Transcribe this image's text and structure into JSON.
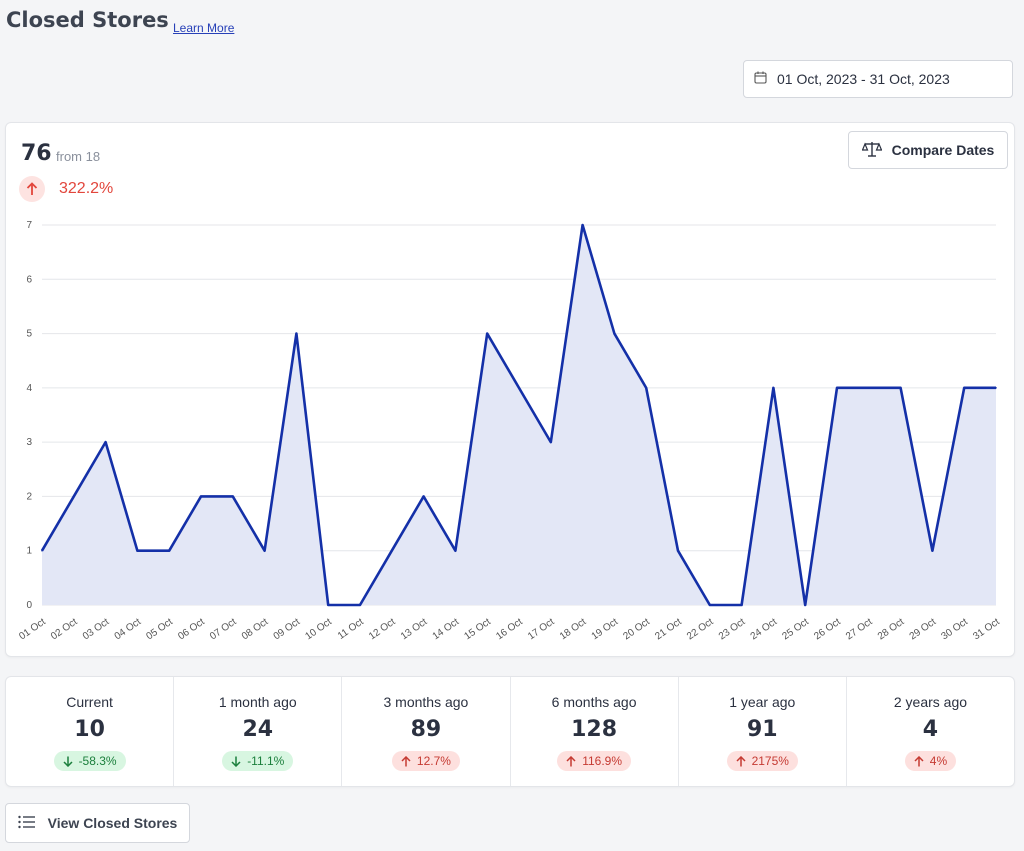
{
  "header": {
    "title": "Closed Stores",
    "learn_more": "Learn More"
  },
  "date_range": {
    "label": "01 Oct, 2023 - 31 Oct, 2023",
    "icon": "calendar-icon"
  },
  "summary": {
    "total": "76",
    "from_text": "from 18",
    "change": "322.2%",
    "change_direction": "up",
    "compare_button": "Compare Dates",
    "compare_icon": "scale-icon"
  },
  "chart_data": {
    "type": "area",
    "title": "",
    "xlabel": "",
    "ylabel": "",
    "categories": [
      "01 Oct",
      "02 Oct",
      "03 Oct",
      "04 Oct",
      "05 Oct",
      "06 Oct",
      "07 Oct",
      "08 Oct",
      "09 Oct",
      "10 Oct",
      "11 Oct",
      "12 Oct",
      "13 Oct",
      "14 Oct",
      "15 Oct",
      "16 Oct",
      "17 Oct",
      "18 Oct",
      "19 Oct",
      "20 Oct",
      "21 Oct",
      "22 Oct",
      "23 Oct",
      "24 Oct",
      "25 Oct",
      "26 Oct",
      "27 Oct",
      "28 Oct",
      "29 Oct",
      "30 Oct",
      "31 Oct"
    ],
    "values": [
      1,
      2,
      3,
      1,
      1,
      2,
      2,
      1,
      5,
      0,
      0,
      1,
      2,
      1,
      5,
      4,
      3,
      7,
      5,
      4,
      1,
      0,
      0,
      4,
      0,
      4,
      4,
      4,
      1,
      4,
      4
    ],
    "ylim": [
      0,
      7
    ],
    "yticks": [
      0,
      1,
      2,
      3,
      4,
      5,
      6,
      7
    ],
    "grid": true,
    "line_color": "#1430a8",
    "fill_color": "#e3e7f6"
  },
  "stats": [
    {
      "label": "Current",
      "value": "10",
      "change": "-58.3%",
      "direction": "down"
    },
    {
      "label": "1 month ago",
      "value": "24",
      "change": "-11.1%",
      "direction": "down"
    },
    {
      "label": "3 months ago",
      "value": "89",
      "change": "12.7%",
      "direction": "up"
    },
    {
      "label": "6 months ago",
      "value": "128",
      "change": "116.9%",
      "direction": "up"
    },
    {
      "label": "1 year ago",
      "value": "91",
      "change": "2175%",
      "direction": "up"
    },
    {
      "label": "2 years ago",
      "value": "4",
      "change": "4%",
      "direction": "up"
    }
  ],
  "footer": {
    "view_button": "View Closed Stores",
    "view_icon": "list-icon"
  }
}
